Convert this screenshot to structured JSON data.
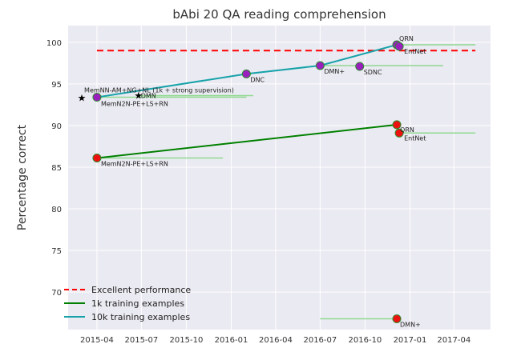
{
  "chart_data": {
    "type": "scatter",
    "title": "bAbi 20 QA reading comprehension",
    "xlabel": "",
    "ylabel": "Percentage correct",
    "x_axis": {
      "kind": "date",
      "range": [
        "2015-02-01",
        "2017-06-15"
      ],
      "ticks": [
        "2015-04",
        "2015-07",
        "2015-10",
        "2016-01",
        "2016-04",
        "2016-07",
        "2016-10",
        "2017-01",
        "2017-04"
      ]
    },
    "y_axis": {
      "range": [
        65.5,
        102
      ],
      "ticks": [
        70,
        75,
        80,
        85,
        90,
        95,
        100
      ]
    },
    "grid": true,
    "legend_position": "bottom-left",
    "colors": {
      "background": "#eaeaf2",
      "grid": "#ffffff",
      "excellent": "#ff0000",
      "line_1k": "#008000",
      "line_10k": "#17a2a9",
      "marker_1k": "#ee1111",
      "marker_10k": "#9b1fbf",
      "marker_edge": "#2e8b2e",
      "range_line": "#90d890",
      "star": "#000000"
    },
    "legend": [
      {
        "label": "Excellent performance",
        "style": "dashed",
        "color": "#ff0000"
      },
      {
        "label": "1k training examples",
        "style": "solid",
        "color": "#008000"
      },
      {
        "label": "10k training examples",
        "style": "solid",
        "color": "#17a2a9"
      }
    ],
    "excellent_line": {
      "y": 99,
      "x_start": "2015-04-01",
      "x_end": "2017-05-15"
    },
    "frontier_1k": [
      {
        "x": "2015-04-01",
        "y": 86.1
      },
      {
        "x": "2016-12-05",
        "y": 90.1
      }
    ],
    "frontier_10k": [
      {
        "x": "2015-04-01",
        "y": 93.4
      },
      {
        "x": "2016-02-01",
        "y": 96.2
      },
      {
        "x": "2016-07-01",
        "y": 97.2
      },
      {
        "x": "2016-12-05",
        "y": 99.7
      }
    ],
    "points": [
      {
        "label": "MemN2N-PE+LS+RN",
        "x": "2015-04-01",
        "y": 93.4,
        "series": "10k",
        "range_end": "2016-02-01"
      },
      {
        "label": "DNC",
        "x": "2016-02-01",
        "y": 96.2,
        "series": "10k",
        "range_end": ""
      },
      {
        "label": "DMN+",
        "x": "2016-07-01",
        "y": 97.2,
        "series": "10k",
        "range_end": "2017-03-10"
      },
      {
        "label": "SDNC",
        "x": "2016-09-20",
        "y": 97.1,
        "series": "10k",
        "range_end": ""
      },
      {
        "label": "QRN",
        "x": "2016-12-05",
        "y": 99.7,
        "series": "10k",
        "range_end": "2017-05-15"
      },
      {
        "label": "EntNet",
        "x": "2016-12-10",
        "y": 99.5,
        "series": "10k",
        "range_end": ""
      },
      {
        "label": "MemN2N-PE+LS+RN",
        "x": "2015-04-01",
        "y": 86.1,
        "series": "1k",
        "range_end": "2015-12-15"
      },
      {
        "label": "QRN",
        "x": "2016-12-05",
        "y": 90.1,
        "series": "1k",
        "range_end": ""
      },
      {
        "label": "EntNet",
        "x": "2016-12-10",
        "y": 89.1,
        "series": "1k",
        "range_end": "2017-05-15"
      },
      {
        "label": "DMN+",
        "x": "2016-12-05",
        "y": 66.8,
        "series": "1k",
        "range_start": "2016-07-01",
        "range_end": "2016-12-05"
      }
    ],
    "stars": [
      {
        "label": "MemNN-AM+NG+NL (1k + strong supervision)",
        "x": "2015-03-01",
        "y": 93.3
      },
      {
        "label": "DMN",
        "x": "2015-06-25",
        "y": 93.6,
        "range_end": "2016-02-15"
      }
    ]
  }
}
